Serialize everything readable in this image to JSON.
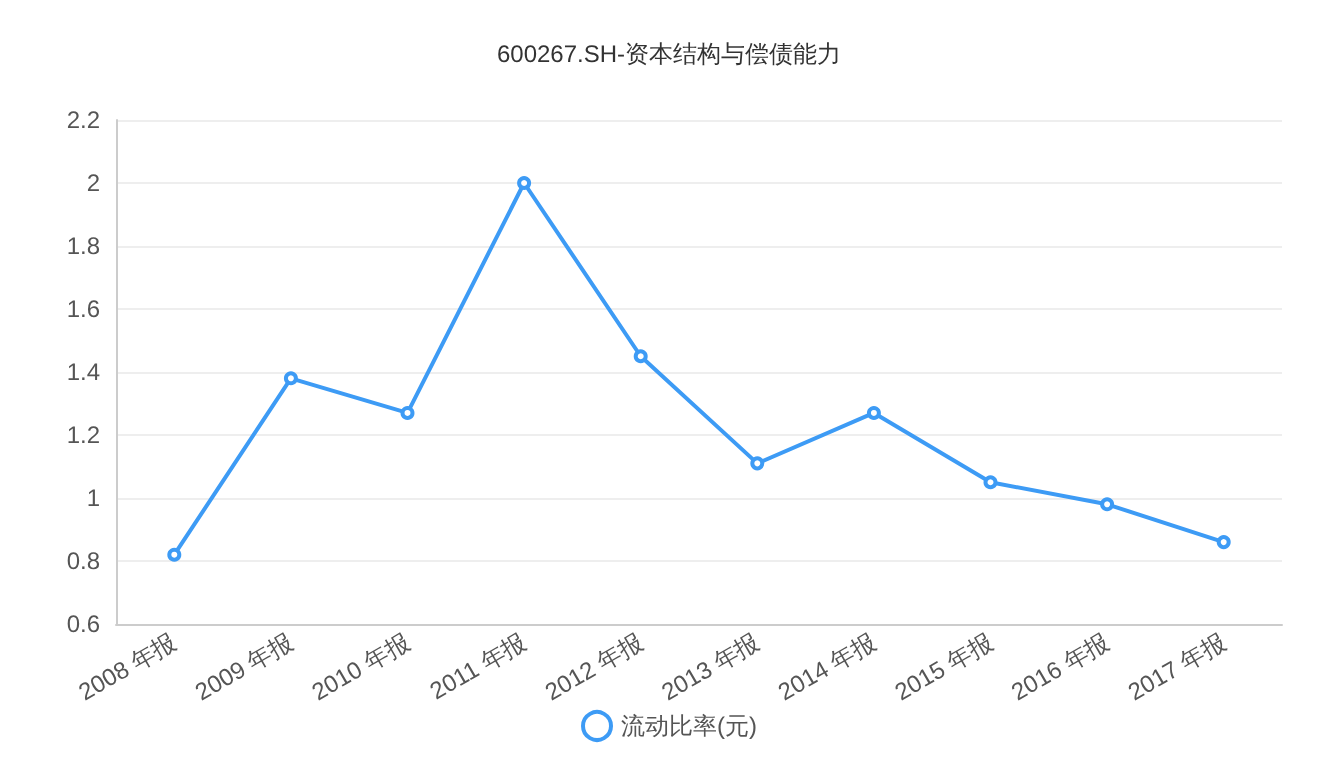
{
  "chart_data": {
    "type": "line",
    "title": "600267.SH-资本结构与偿债能力",
    "categories": [
      "2008 年报",
      "2009 年报",
      "2010 年报",
      "2011 年报",
      "2012 年报",
      "2013 年报",
      "2014 年报",
      "2015 年报",
      "2016 年报",
      "2017 年报"
    ],
    "series": [
      {
        "name": "流动比率(元)",
        "color": "#3d9bf5",
        "values": [
          0.82,
          1.38,
          1.27,
          2.0,
          1.45,
          1.11,
          1.27,
          1.05,
          0.98,
          0.86
        ]
      }
    ],
    "ylim": [
      0.6,
      2.2
    ],
    "yticks": [
      0.6,
      0.8,
      1,
      1.2,
      1.4,
      1.6,
      1.8,
      2,
      2.2
    ],
    "grid": "y",
    "legend": "bottom",
    "marker": "circle",
    "line_style": "solid"
  }
}
